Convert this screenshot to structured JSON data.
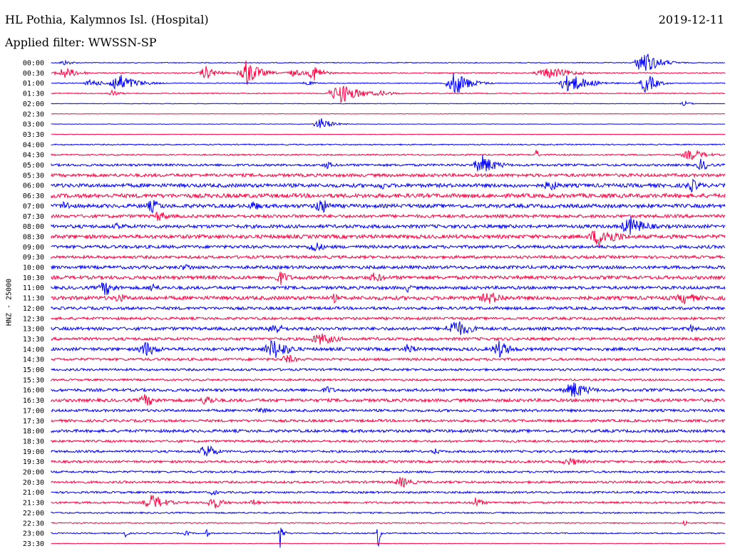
{
  "header": {
    "station": "HL Pothia, Kalymnos Isl. (Hospital)",
    "date": "2019-12-11",
    "filter": "Applied filter: WWSSN-SP"
  },
  "chart_data": {
    "type": "line",
    "title": "HL Pothia, Kalymnos Isl. (Hospital)",
    "ylabel": "HNZ - 25000",
    "xlabel": "",
    "grid": false,
    "colors": {
      "odd_trace": "#0000ff",
      "even_trace": "#ff0040"
    },
    "row_labels": [
      "00:00",
      "00:30",
      "01:00",
      "01:30",
      "02:00",
      "02:30",
      "03:00",
      "03:30",
      "04:00",
      "04:30",
      "05:00",
      "05:30",
      "06:00",
      "06:30",
      "07:00",
      "07:30",
      "08:00",
      "08:30",
      "09:00",
      "09:30",
      "10:00",
      "10:30",
      "11:00",
      "11:30",
      "12:00",
      "12:30",
      "13:00",
      "13:30",
      "14:00",
      "14:30",
      "15:00",
      "15:30",
      "16:00",
      "16:30",
      "17:00",
      "17:30",
      "18:00",
      "18:30",
      "19:00",
      "19:30",
      "20:00",
      "20:30",
      "21:00",
      "21:30",
      "22:00",
      "22:30",
      "23:00",
      "23:30"
    ],
    "noise_level": [
      0.6,
      0.8,
      0.6,
      0.7,
      0.4,
      0.3,
      0.3,
      0.3,
      0.8,
      1.0,
      1.6,
      2.2,
      2.6,
      2.8,
      2.6,
      2.2,
      2.4,
      2.6,
      2.2,
      2.0,
      2.2,
      2.4,
      2.2,
      2.6,
      2.0,
      1.8,
      2.2,
      2.0,
      2.2,
      1.8,
      1.6,
      1.4,
      2.0,
      2.2,
      1.8,
      1.8,
      2.0,
      1.6,
      1.6,
      1.6,
      1.4,
      1.6,
      1.4,
      1.4,
      1.0,
      0.8,
      0.8,
      0.4
    ],
    "events": [
      {
        "row": 0,
        "at": 0.02,
        "amp": 4,
        "width": 0.012
      },
      {
        "row": 0,
        "at": 0.88,
        "amp": 18,
        "width": 0.018
      },
      {
        "row": 1,
        "at": 0.02,
        "amp": 8,
        "width": 0.02
      },
      {
        "row": 1,
        "at": 0.23,
        "amp": 10,
        "width": 0.014
      },
      {
        "row": 1,
        "at": 0.29,
        "amp": 20,
        "width": 0.016
      },
      {
        "row": 1,
        "at": 0.292,
        "amp": 26,
        "width": 0.002
      },
      {
        "row": 1,
        "at": 0.36,
        "amp": 5,
        "width": 0.02
      },
      {
        "row": 1,
        "at": 0.39,
        "amp": 12,
        "width": 0.012
      },
      {
        "row": 1,
        "at": 0.74,
        "amp": 8,
        "width": 0.03
      },
      {
        "row": 2,
        "at": 0.06,
        "amp": 6,
        "width": 0.014
      },
      {
        "row": 2,
        "at": 0.1,
        "amp": 14,
        "width": 0.022
      },
      {
        "row": 2,
        "at": 0.097,
        "amp": 18,
        "width": 0.002
      },
      {
        "row": 2,
        "at": 0.38,
        "amp": 4,
        "width": 0.01
      },
      {
        "row": 2,
        "at": 0.6,
        "amp": 18,
        "width": 0.018
      },
      {
        "row": 2,
        "at": 0.77,
        "amp": 14,
        "width": 0.024
      },
      {
        "row": 2,
        "at": 0.883,
        "amp": 16,
        "width": 0.012
      },
      {
        "row": 3,
        "at": 0.09,
        "amp": 5,
        "width": 0.01
      },
      {
        "row": 3,
        "at": 0.43,
        "amp": 14,
        "width": 0.026
      },
      {
        "row": 3,
        "at": 0.49,
        "amp": 4,
        "width": 0.02
      },
      {
        "row": 4,
        "at": 0.94,
        "amp": 4,
        "width": 0.008
      },
      {
        "row": 6,
        "at": 0.4,
        "amp": 9,
        "width": 0.014
      },
      {
        "row": 9,
        "at": 0.72,
        "amp": 15,
        "width": 0.002
      },
      {
        "row": 9,
        "at": 0.95,
        "amp": 8,
        "width": 0.02
      },
      {
        "row": 10,
        "at": 0.41,
        "amp": 6,
        "width": 0.01
      },
      {
        "row": 10,
        "at": 0.64,
        "amp": 15,
        "width": 0.018
      },
      {
        "row": 10,
        "at": 0.965,
        "amp": 10,
        "width": 0.01
      },
      {
        "row": 12,
        "at": 0.49,
        "amp": 7,
        "width": 0.01
      },
      {
        "row": 12,
        "at": 0.74,
        "amp": 9,
        "width": 0.014
      },
      {
        "row": 12,
        "at": 0.95,
        "amp": 10,
        "width": 0.014
      },
      {
        "row": 14,
        "at": 0.02,
        "amp": 9,
        "width": 0.01
      },
      {
        "row": 14,
        "at": 0.15,
        "amp": 10,
        "width": 0.014
      },
      {
        "row": 14,
        "at": 0.3,
        "amp": 8,
        "width": 0.012
      },
      {
        "row": 14,
        "at": 0.4,
        "amp": 12,
        "width": 0.014
      },
      {
        "row": 15,
        "at": 0.16,
        "amp": 9,
        "width": 0.012
      },
      {
        "row": 16,
        "at": 0.1,
        "amp": 6,
        "width": 0.014
      },
      {
        "row": 16,
        "at": 0.86,
        "amp": 14,
        "width": 0.022
      },
      {
        "row": 17,
        "at": 0.815,
        "amp": 16,
        "width": 0.024
      },
      {
        "row": 18,
        "at": 0.39,
        "amp": 9,
        "width": 0.014
      },
      {
        "row": 20,
        "at": 0.2,
        "amp": 5,
        "width": 0.02
      },
      {
        "row": 21,
        "at": 0.34,
        "amp": 11,
        "width": 0.012
      },
      {
        "row": 21,
        "at": 0.48,
        "amp": 8,
        "width": 0.014
      },
      {
        "row": 22,
        "at": 0.08,
        "amp": 12,
        "width": 0.014
      },
      {
        "row": 22,
        "at": 0.15,
        "amp": 8,
        "width": 0.01
      },
      {
        "row": 22,
        "at": 0.53,
        "amp": 8,
        "width": 0.006
      },
      {
        "row": 23,
        "at": 0.1,
        "amp": 8,
        "width": 0.012
      },
      {
        "row": 23,
        "at": 0.42,
        "amp": 8,
        "width": 0.006
      },
      {
        "row": 23,
        "at": 0.65,
        "amp": 9,
        "width": 0.024
      },
      {
        "row": 23,
        "at": 0.94,
        "amp": 9,
        "width": 0.02
      },
      {
        "row": 26,
        "at": 0.33,
        "amp": 10,
        "width": 0.014
      },
      {
        "row": 26,
        "at": 0.6,
        "amp": 14,
        "width": 0.02
      },
      {
        "row": 26,
        "at": 0.95,
        "amp": 8,
        "width": 0.006
      },
      {
        "row": 27,
        "at": 0.4,
        "amp": 9,
        "width": 0.024
      },
      {
        "row": 28,
        "at": 0.14,
        "amp": 12,
        "width": 0.016
      },
      {
        "row": 28,
        "at": 0.33,
        "amp": 16,
        "width": 0.02
      },
      {
        "row": 28,
        "at": 0.53,
        "amp": 9,
        "width": 0.01
      },
      {
        "row": 28,
        "at": 0.665,
        "amp": 13,
        "width": 0.016
      },
      {
        "row": 29,
        "at": 0.35,
        "amp": 8,
        "width": 0.012
      },
      {
        "row": 32,
        "at": 0.41,
        "amp": 6,
        "width": 0.012
      },
      {
        "row": 32,
        "at": 0.775,
        "amp": 13,
        "width": 0.02
      },
      {
        "row": 33,
        "at": 0.14,
        "amp": 10,
        "width": 0.014
      },
      {
        "row": 33,
        "at": 0.23,
        "amp": 9,
        "width": 0.012
      },
      {
        "row": 34,
        "at": 0.31,
        "amp": 6,
        "width": 0.01
      },
      {
        "row": 38,
        "at": 0.23,
        "amp": 13,
        "width": 0.012
      },
      {
        "row": 38,
        "at": 0.57,
        "amp": 6,
        "width": 0.006
      },
      {
        "row": 39,
        "at": 0.77,
        "amp": 6,
        "width": 0.02
      },
      {
        "row": 41,
        "at": 0.52,
        "amp": 9,
        "width": 0.014
      },
      {
        "row": 42,
        "at": 0.24,
        "amp": 6,
        "width": 0.006
      },
      {
        "row": 43,
        "at": 0.15,
        "amp": 12,
        "width": 0.018
      },
      {
        "row": 43,
        "at": 0.24,
        "amp": 11,
        "width": 0.012
      },
      {
        "row": 43,
        "at": 0.3,
        "amp": 6,
        "width": 0.008
      },
      {
        "row": 43,
        "at": 0.63,
        "amp": 8,
        "width": 0.01
      },
      {
        "row": 45,
        "at": 0.94,
        "amp": 11,
        "width": 0.002
      },
      {
        "row": 46,
        "at": 0.11,
        "amp": 6,
        "width": 0.004
      },
      {
        "row": 46,
        "at": 0.2,
        "amp": 6,
        "width": 0.004
      },
      {
        "row": 46,
        "at": 0.23,
        "amp": 8,
        "width": 0.003
      },
      {
        "row": 46,
        "at": 0.34,
        "amp": 28,
        "width": 0.003
      },
      {
        "row": 46,
        "at": 0.485,
        "amp": 30,
        "width": 0.002
      }
    ]
  }
}
